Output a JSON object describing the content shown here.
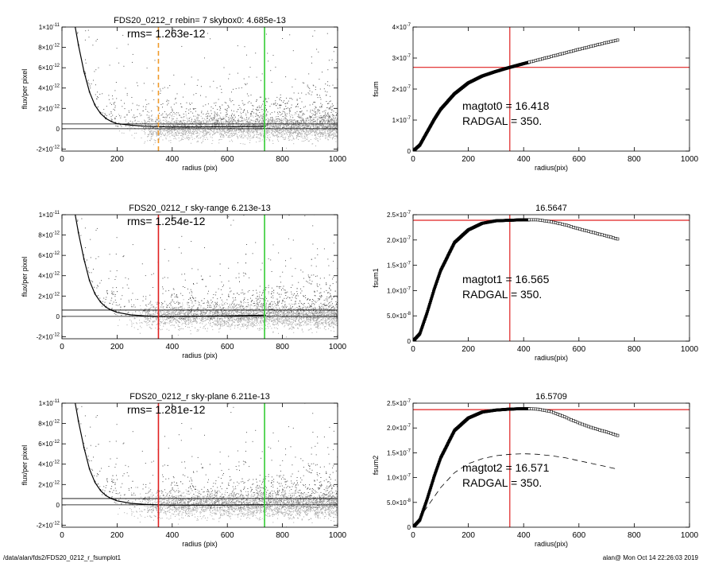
{
  "chart_data": [
    {
      "type": "scatter",
      "title": "FDS20_0212_r rebin= 7    skybox0:  4.685e-13",
      "annotation": "rms= 1.263e-12",
      "xlabel": "radius (pix)",
      "ylabel": "flux/per pixel",
      "xlim": [
        0,
        1000
      ],
      "ylim": [
        -2.2e-12,
        1e-11
      ],
      "xticks": [
        "0",
        "200",
        "400",
        "600",
        "800",
        "1000"
      ],
      "yticks": [
        {
          "v": 1e-11,
          "m": "1",
          "e": "-11"
        },
        {
          "v": 8e-12,
          "m": "8",
          "e": "-12"
        },
        {
          "v": 6e-12,
          "m": "6",
          "e": "-12"
        },
        {
          "v": 4e-12,
          "m": "4",
          "e": "-12"
        },
        {
          "v": 2e-12,
          "m": "2",
          "e": "-12"
        },
        {
          "v": 0,
          "m": "0",
          "e": ""
        },
        {
          "v": -2e-12,
          "m": "-2",
          "e": "-12"
        }
      ],
      "profile_x": [
        48,
        60,
        80,
        100,
        120,
        140,
        160,
        180,
        200,
        250,
        300,
        350,
        400,
        500,
        600,
        700,
        740
      ],
      "profile_y": [
        1e-11,
        8.2e-12,
        5.6e-12,
        3.6e-12,
        2.3e-12,
        1.5e-12,
        1e-12,
        7e-13,
        5e-13,
        3.5e-13,
        2.5e-13,
        2e-13,
        1.8e-13,
        1.8e-13,
        2e-13,
        2.2e-13,
        2.5e-13
      ],
      "hlines": [
        {
          "y": 4.685e-13,
          "color": "#000000"
        },
        {
          "y": 0,
          "color": "#000000"
        }
      ],
      "vlines": [
        {
          "x": 350,
          "color": "#f09a2a",
          "dash": true
        },
        {
          "x": 735,
          "color": "#33cc33",
          "dash": false
        }
      ],
      "scatter_color": "#555555",
      "scatter_light_color": "#aaaaaa"
    },
    {
      "type": "scatter",
      "title": "FDS20_0212_r sky-range  6.213e-13",
      "annotation": "rms= 1.254e-12",
      "xlabel": "radius (pix)",
      "ylabel": "flux/per pixel",
      "xlim": [
        0,
        1000
      ],
      "ylim": [
        -2.2e-12,
        1e-11
      ],
      "xticks": [
        "0",
        "200",
        "400",
        "600",
        "800",
        "1000"
      ],
      "yticks": [
        {
          "v": 1e-11,
          "m": "1",
          "e": "-11"
        },
        {
          "v": 8e-12,
          "m": "8",
          "e": "-12"
        },
        {
          "v": 6e-12,
          "m": "6",
          "e": "-12"
        },
        {
          "v": 4e-12,
          "m": "4",
          "e": "-12"
        },
        {
          "v": 2e-12,
          "m": "2",
          "e": "-12"
        },
        {
          "v": 0,
          "m": "0",
          "e": ""
        },
        {
          "v": -2e-12,
          "m": "-2",
          "e": "-12"
        }
      ],
      "profile_x": [
        48,
        60,
        80,
        100,
        120,
        140,
        160,
        180,
        200,
        250,
        300,
        350,
        400,
        500,
        600,
        700,
        740
      ],
      "profile_y": [
        1e-11,
        8.2e-12,
        5.6e-12,
        3.5e-12,
        2.2e-12,
        1.4e-12,
        9e-13,
        6e-13,
        4e-13,
        1.5e-13,
        5e-14,
        0,
        0,
        2e-14,
        5e-14,
        1e-13,
        1.2e-13
      ],
      "hlines": [
        {
          "y": 6.213e-13,
          "color": "#000000"
        },
        {
          "y": 0,
          "color": "#000000"
        }
      ],
      "vlines": [
        {
          "x": 350,
          "color": "#e02020",
          "dash": false
        },
        {
          "x": 735,
          "color": "#33cc33",
          "dash": false
        }
      ],
      "scatter_color": "#555555",
      "scatter_light_color": "#aaaaaa"
    },
    {
      "type": "scatter",
      "title": "FDS20_0212_r sky-plane  6.211e-13",
      "annotation": "rms= 1.281e-12",
      "xlabel": "radius (pix)",
      "ylabel": "flux/per pixel",
      "xlim": [
        0,
        1000
      ],
      "ylim": [
        -2.2e-12,
        1e-11
      ],
      "xticks": [
        "0",
        "200",
        "400",
        "600",
        "800",
        "1000"
      ],
      "yticks": [
        {
          "v": 1e-11,
          "m": "1",
          "e": "-11"
        },
        {
          "v": 8e-12,
          "m": "8",
          "e": "-12"
        },
        {
          "v": 6e-12,
          "m": "6",
          "e": "-12"
        },
        {
          "v": 4e-12,
          "m": "4",
          "e": "-12"
        },
        {
          "v": 2e-12,
          "m": "2",
          "e": "-12"
        },
        {
          "v": 0,
          "m": "0",
          "e": ""
        },
        {
          "v": -2e-12,
          "m": "-2",
          "e": "-12"
        }
      ],
      "profile_x": [
        48,
        60,
        80,
        100,
        120,
        140,
        160,
        180,
        200,
        250,
        300,
        350,
        400,
        500,
        600,
        700,
        740
      ],
      "profile_y": [
        1e-11,
        8.2e-12,
        5.6e-12,
        3.5e-12,
        2.2e-12,
        1.4e-12,
        9e-13,
        6e-13,
        4e-13,
        1.5e-13,
        5e-14,
        0,
        -2e-14,
        -3e-14,
        -2e-14,
        0,
        1e-14
      ],
      "hlines": [
        {
          "y": 6.211e-13,
          "color": "#000000"
        },
        {
          "y": 0,
          "color": "#000000"
        }
      ],
      "vlines": [
        {
          "x": 350,
          "color": "#e02020",
          "dash": false
        },
        {
          "x": 735,
          "color": "#33cc33",
          "dash": false
        }
      ],
      "scatter_color": "#555555",
      "scatter_light_color": "#aaaaaa"
    },
    {
      "type": "line",
      "title": "",
      "xlabel": "radius(pix)",
      "ylabel": "fsum",
      "xlim": [
        0,
        1000
      ],
      "ylim": [
        0,
        4e-07
      ],
      "xticks": [
        "0",
        "200",
        "400",
        "600",
        "800",
        "1000"
      ],
      "yticks": [
        {
          "v": 4e-07,
          "m": "4",
          "e": "-7"
        },
        {
          "v": 3e-07,
          "m": "3",
          "e": "-7"
        },
        {
          "v": 2e-07,
          "m": "2",
          "e": "-7"
        },
        {
          "v": 1e-07,
          "m": "1",
          "e": "-7"
        },
        {
          "v": 0,
          "m": "0",
          "e": ""
        }
      ],
      "curve_x": [
        0,
        25,
        50,
        75,
        100,
        150,
        200,
        250,
        300,
        350,
        400,
        500,
        600,
        700,
        740
      ],
      "curve_y": [
        0,
        2e-08,
        6e-08,
        1e-07,
        1.35e-07,
        1.85e-07,
        2.2e-07,
        2.42e-07,
        2.57e-07,
        2.7e-07,
        2.82e-07,
        3.05e-07,
        3.28e-07,
        3.5e-07,
        3.58e-07
      ],
      "dashed_x": [],
      "dashed_y": [],
      "hline": 2.7e-07,
      "vline": 350,
      "line_color": "#e02020",
      "labels": [
        {
          "k": "magtot0",
          "v": "16.418"
        },
        {
          "k": "RADGAL",
          "v": "350."
        }
      ]
    },
    {
      "type": "line",
      "title": "16.5647",
      "xlabel": "radius(pix)",
      "ylabel": "fsum1",
      "xlim": [
        0,
        1000
      ],
      "ylim": [
        0,
        2.5e-07
      ],
      "xticks": [
        "0",
        "200",
        "400",
        "600",
        "800",
        "1000"
      ],
      "yticks": [
        {
          "v": 2.5e-07,
          "m": "2.5",
          "e": "-7"
        },
        {
          "v": 2e-07,
          "m": "2.0",
          "e": "-7"
        },
        {
          "v": 1.5e-07,
          "m": "1.5",
          "e": "-7"
        },
        {
          "v": 1e-07,
          "m": "1.0",
          "e": "-7"
        },
        {
          "v": 5e-08,
          "m": "5.0",
          "e": "-8"
        },
        {
          "v": 0,
          "m": "0",
          "e": ""
        }
      ],
      "curve_x": [
        0,
        25,
        50,
        75,
        100,
        150,
        200,
        250,
        300,
        350,
        400,
        450,
        500,
        550,
        600,
        650,
        700,
        740
      ],
      "curve_y": [
        0,
        1.5e-08,
        5.5e-08,
        1e-07,
        1.4e-07,
        1.95e-07,
        2.2e-07,
        2.33e-07,
        2.38e-07,
        2.39e-07,
        2.4e-07,
        2.4e-07,
        2.36e-07,
        2.3e-07,
        2.22e-07,
        2.15e-07,
        2.08e-07,
        2.02e-07
      ],
      "dashed_x": [],
      "dashed_y": [],
      "hline": 2.39e-07,
      "vline": 350,
      "line_color": "#e02020",
      "labels": [
        {
          "k": "magtot1",
          "v": "16.565"
        },
        {
          "k": "RADGAL",
          "v": "350."
        }
      ]
    },
    {
      "type": "line",
      "title": "16.5709",
      "xlabel": "radius(pix)",
      "ylabel": "fsum2",
      "xlim": [
        0,
        1000
      ],
      "ylim": [
        0,
        2.5e-07
      ],
      "xticks": [
        "0",
        "200",
        "400",
        "600",
        "800",
        "1000"
      ],
      "yticks": [
        {
          "v": 2.5e-07,
          "m": "2.5",
          "e": "-7"
        },
        {
          "v": 2e-07,
          "m": "2.0",
          "e": "-7"
        },
        {
          "v": 1.5e-07,
          "m": "1.5",
          "e": "-7"
        },
        {
          "v": 1e-07,
          "m": "1.0",
          "e": "-7"
        },
        {
          "v": 5e-08,
          "m": "5.0",
          "e": "-8"
        },
        {
          "v": 0,
          "m": "0",
          "e": ""
        }
      ],
      "curve_x": [
        0,
        25,
        50,
        75,
        100,
        150,
        200,
        250,
        300,
        350,
        400,
        450,
        500,
        550,
        600,
        650,
        700,
        740
      ],
      "curve_y": [
        0,
        1.5e-08,
        5.5e-08,
        1e-07,
        1.4e-07,
        1.95e-07,
        2.2e-07,
        2.32e-07,
        2.36e-07,
        2.38e-07,
        2.39e-07,
        2.38e-07,
        2.33e-07,
        2.22e-07,
        2.1e-07,
        2e-07,
        1.92e-07,
        1.85e-07
      ],
      "dashed_x": [
        0,
        50,
        100,
        150,
        200,
        250,
        300,
        350,
        400,
        450,
        500,
        550,
        600,
        650,
        700,
        740
      ],
      "dashed_y": [
        0,
        4e-08,
        8e-08,
        1.1e-07,
        1.28e-07,
        1.38e-07,
        1.44e-07,
        1.47e-07,
        1.48e-07,
        1.47e-07,
        1.44e-07,
        1.4e-07,
        1.34e-07,
        1.28e-07,
        1.22e-07,
        1.17e-07
      ],
      "hline": 2.37e-07,
      "vline": 350,
      "line_color": "#e02020",
      "labels": [
        {
          "k": "magtot2",
          "v": "16.571"
        },
        {
          "k": "RADGAL",
          "v": "350."
        }
      ]
    }
  ],
  "footer": {
    "left": "/data/alan/fds2/FDS20_0212_r_fsumplot1",
    "right": "alan@  Mon Oct 14 22:26:03 2019"
  }
}
